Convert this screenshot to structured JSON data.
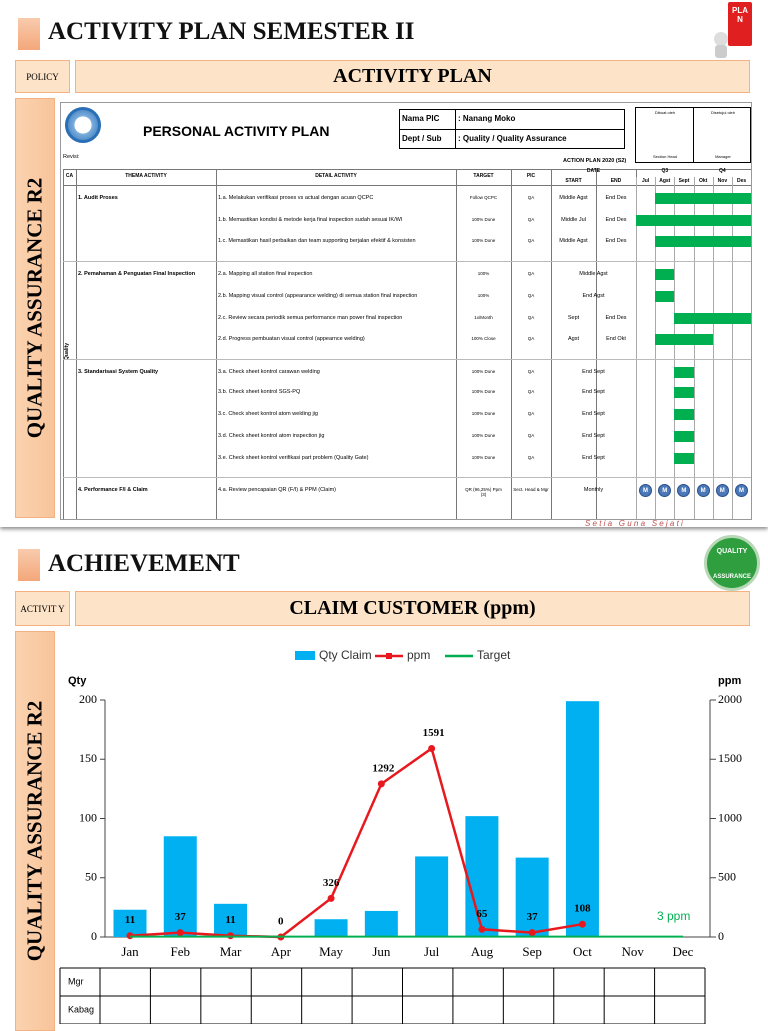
{
  "slide1": {
    "title": "ACTIVITY PLAN SEMESTER II",
    "icon_text": "PLAN",
    "side_label": "POLICY",
    "banner": "ACTIVITY PLAN",
    "vertical_label": "QUALITY ASSURANCE R2",
    "plan": {
      "heading": "PERSONAL ACTIVITY PLAN",
      "pic_label": "Nama PIC",
      "pic_value": ": Nanang Moko",
      "dept_label": "Dept / Sub",
      "dept_value": ": Quality / Quality Assurance",
      "made_by": "Dibuat oleh",
      "approved_by": "Disetujui oleh",
      "made_role": "Section Head",
      "approved_role": "Manager",
      "revision": "Revisi:",
      "action_plan": "ACTION PLAN 2020 (S2)",
      "headers": {
        "ca": "CA",
        "thema": "THEMA ACTIVITY",
        "detail": "DETAIL ACTIVITY",
        "target": "TARGET",
        "pic": "PIC",
        "date": "DATE",
        "start": "START",
        "end": "END",
        "q3": "Q3",
        "q4": "Q4",
        "months": [
          "Jul",
          "Agst",
          "Sept",
          "Okt",
          "Nov",
          "Des"
        ]
      },
      "ca_label": "Quality",
      "monthly_marker": "M",
      "rows": [
        {
          "thema": "1. Audit Proses",
          "detail": "1.a. Melakukan verifikasi proses vs actual dengan acuan QCPC",
          "target": "Follow QCPC",
          "pic": "QA",
          "start": "Middle Agst",
          "end": "End Des"
        },
        {
          "detail": "1.b. Memastikan kondisi & metode kerja final inspection sudah sesuai IK/WI",
          "target": "100% Done",
          "pic": "QA",
          "start": "Middle Jul",
          "end": "End Des"
        },
        {
          "detail": "1.c. Memastikan hasil perbaikan dan team supporting berjalan efektif & konsisten",
          "target": "100% Done",
          "pic": "QA",
          "start": "Middle Agst",
          "end": "End Des"
        },
        {
          "thema": "2. Pemahaman & Penguatan Final Inspection",
          "detail": "2.a. Mapping all station final inspection",
          "target": "100%",
          "pic": "QA",
          "date": "Middle Agst"
        },
        {
          "detail": "2.b. Mapping visual control (appearance welding) di semua station final inspection",
          "target": "100%",
          "pic": "QA",
          "date": "End Agst"
        },
        {
          "detail": "2.c. Review secara periodik semua performance man power final inspection",
          "target": "1x/Month",
          "pic": "QA",
          "start": "Sept",
          "end": "End Des"
        },
        {
          "detail": "2.d. Progress pembuatan visual control (appearnce welding)",
          "target": "100% Close",
          "pic": "QA",
          "start": "Agst",
          "end": "End Okt"
        },
        {
          "thema": "3. Standarisasi System Quality",
          "detail": "3.a. Check sheet kontrol carawan welding",
          "target": "100% Done",
          "pic": "QA",
          "date": "End Sept"
        },
        {
          "detail": "3.b. Check sheet kontrol SGS-PQ",
          "target": "100% Done",
          "pic": "QA",
          "date": "End Sept"
        },
        {
          "detail": "3.c. Check sheet kontrol atom welding jig",
          "target": "100% Done",
          "pic": "QA",
          "date": "End Sept"
        },
        {
          "detail": "3.d. Check sheet kontrol atom inspection jig",
          "target": "100% Done",
          "pic": "QA",
          "date": "End Sept"
        },
        {
          "detail": "3.e. Check sheet kontrol verifikasi part problem (Quality Gate)",
          "target": "100% Done",
          "pic": "QA",
          "date": "End Sept"
        },
        {
          "thema": "4. Performance F/I & Claim",
          "detail": "4.a. Review pencapaian QR (F/I) & PPM (Claim)",
          "target": "QR (96,25%) Ppm (3)",
          "pic": "Sect. Head & Mgr",
          "date": "Monthly"
        }
      ]
    },
    "footer": "S e t i a   G u n a   S e j a t i"
  },
  "slide2": {
    "title": "ACHIEVEMENT",
    "badge": [
      "QUALITY",
      "ASSURANCE"
    ],
    "side_label": "ACTIVIT Y",
    "vertical_label": "QUALITY ASSURANCE R2",
    "table": {
      "rows": [
        "Mgr",
        "Kabag",
        ""
      ]
    }
  },
  "chart_data": {
    "type": "bar_line",
    "title": "CLAIM CUSTOMER (ppm)",
    "y_label": "Qty",
    "y2_label": "ppm",
    "categories": [
      "Jan",
      "Feb",
      "Mar",
      "Apr",
      "May",
      "Jun",
      "Jul",
      "Aug",
      "Sep",
      "Oct",
      "Nov",
      "Dec"
    ],
    "series": [
      {
        "name": "Qty Claim",
        "type": "bar",
        "color": "#00b0f0",
        "values": [
          23,
          85,
          28,
          0,
          15,
          22,
          68,
          102,
          67,
          199,
          null,
          null
        ]
      },
      {
        "name": "ppm",
        "type": "line",
        "axis": "y2",
        "color": "#e8191e",
        "values": [
          11,
          37,
          11,
          0,
          326,
          1292,
          1591,
          65,
          37,
          108,
          null,
          null
        ]
      },
      {
        "name": "Target",
        "type": "line",
        "axis": "y2",
        "color": "#00b050",
        "values": [
          3,
          3,
          3,
          3,
          3,
          3,
          3,
          3,
          3,
          3,
          3,
          3
        ]
      }
    ],
    "annotation": "3 ppm",
    "ylim": [
      0,
      200
    ],
    "yticks": [
      0,
      50,
      100,
      150,
      200
    ],
    "y2lim": [
      0,
      2000
    ],
    "y2ticks": [
      0,
      500,
      1000,
      1500,
      2000
    ]
  }
}
